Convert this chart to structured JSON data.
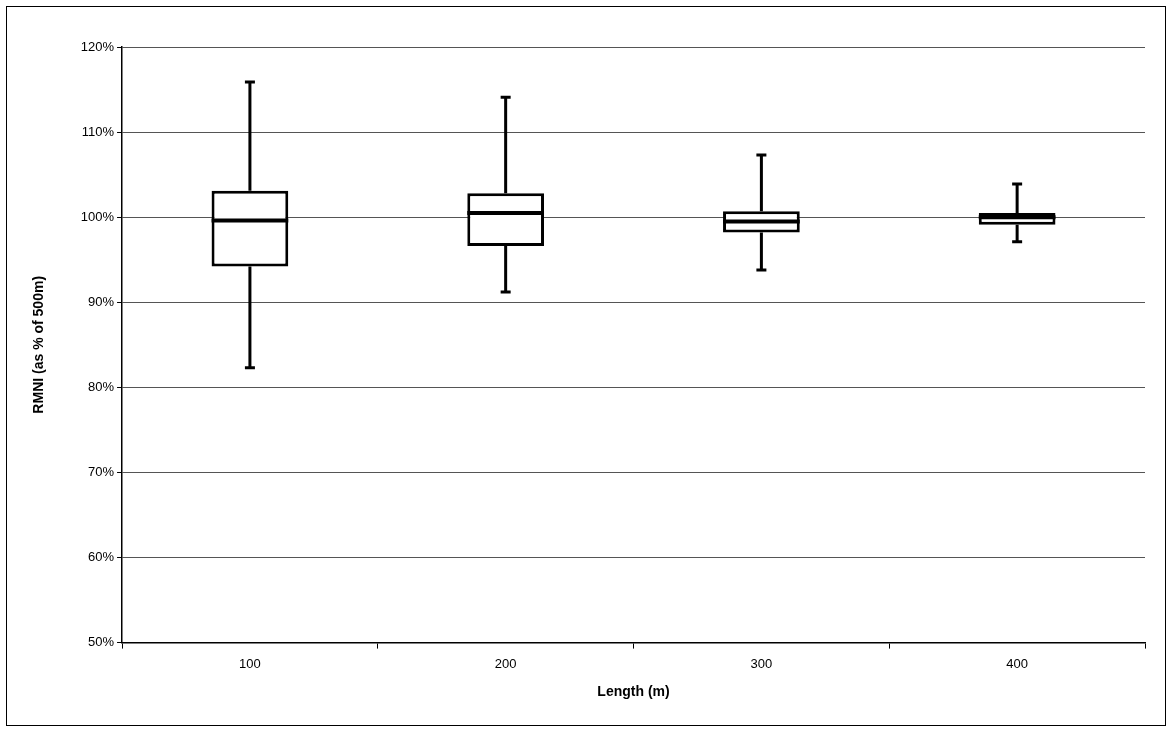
{
  "chart_data": {
    "type": "box",
    "xlabel": "Length (m)",
    "ylabel": "RMNI (as % of 500m)",
    "categories": [
      "100",
      "200",
      "300",
      "400"
    ],
    "boxes": [
      {
        "low": 82.3,
        "q1": 94.2,
        "median": 99.6,
        "q3": 103.1,
        "high": 115.9
      },
      {
        "low": 91.2,
        "q1": 96.6,
        "median": 100.5,
        "q3": 102.8,
        "high": 114.1
      },
      {
        "low": 93.8,
        "q1": 98.2,
        "median": 99.5,
        "q3": 100.7,
        "high": 107.3
      },
      {
        "low": 97.1,
        "q1": 99.1,
        "median": 100,
        "q3": 100.5,
        "high": 103.9
      }
    ],
    "color": "#000000",
    "ylim": [
      50,
      120
    ],
    "yticks": [
      {
        "value": 50,
        "label": "50%"
      },
      {
        "value": 60,
        "label": "60%"
      },
      {
        "value": 70,
        "label": "70%"
      },
      {
        "value": 80,
        "label": "80%"
      },
      {
        "value": 90,
        "label": "90%"
      },
      {
        "value": 100,
        "label": "100%"
      },
      {
        "value": 110,
        "label": "110%"
      },
      {
        "value": 120,
        "label": "120%"
      }
    ],
    "grid": "y",
    "legend": false
  }
}
